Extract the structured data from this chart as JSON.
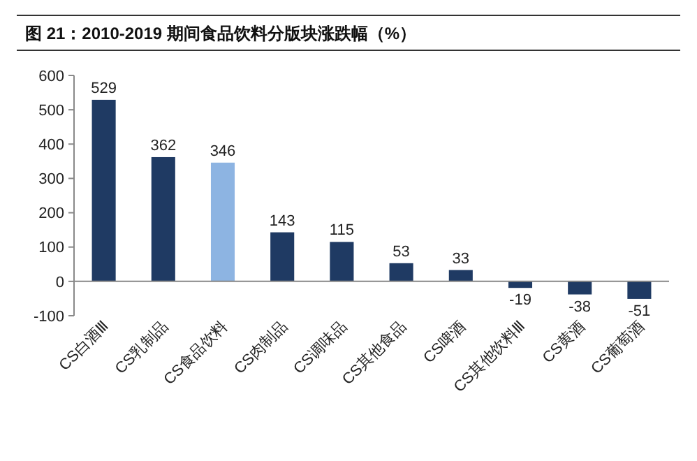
{
  "chart_data": {
    "type": "bar",
    "title": "图 21：2010-2019 期间食品饮料分版块涨跌幅（%）",
    "categories": [
      "CS白酒Ⅲ",
      "CS乳制品",
      "CS食品饮料",
      "CS肉制品",
      "CS调味品",
      "CS其他食品",
      "CS啤酒",
      "CS其他饮料Ⅲ",
      "CS黄酒",
      "CS葡萄酒"
    ],
    "values": [
      529,
      362,
      346,
      143,
      115,
      53,
      33,
      -19,
      -38,
      -51
    ],
    "colors": [
      "#1f3a63",
      "#1f3a63",
      "#8db4e2",
      "#1f3a63",
      "#1f3a63",
      "#1f3a63",
      "#1f3a63",
      "#1f3a63",
      "#1f3a63",
      "#1f3a63"
    ],
    "ylim": [
      -100,
      600
    ],
    "yticks": [
      -100,
      0,
      100,
      200,
      300,
      400,
      500,
      600
    ],
    "data_labels": true,
    "grid": false
  }
}
